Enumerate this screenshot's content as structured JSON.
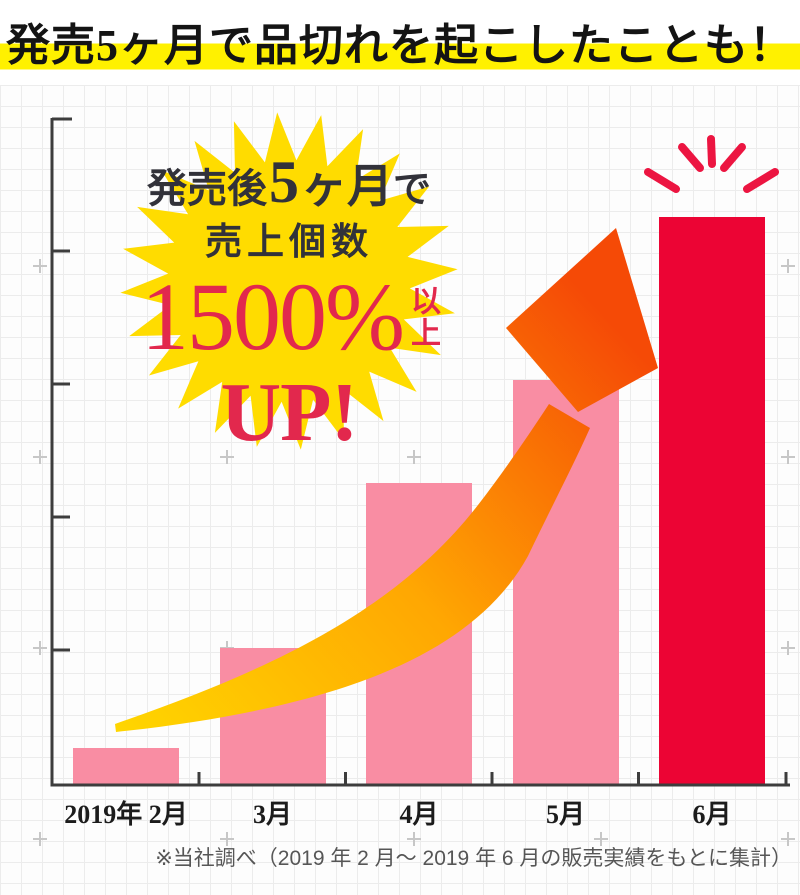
{
  "headline": {
    "text": "発売5ヶ月で品切れを起こしたことも！"
  },
  "badge": {
    "line1_prefix": "発売後",
    "line1_num": "5",
    "line1_unit": "ヶ月",
    "line1_suffix": "で",
    "line2": "売上個数",
    "value": "1500%",
    "value_suffix": "以上",
    "up": "UP!"
  },
  "footnote": {
    "text": "※当社調べ（2019 年 2 月～ 2019 年 6 月の販売実績をもとに集計）"
  },
  "colors": {
    "highlight_yellow": "#fff100",
    "star_yellow": "#ffdc00",
    "bar_pink": "#f98da3",
    "bar_red": "#ec0434",
    "text_red": "#e2284d",
    "text_dark": "#32323a",
    "arrow_start": "#ffd600",
    "arrow_mid": "#ffa702",
    "arrow_end": "#f54a06",
    "rays_red": "#ec1541",
    "axis_dark": "#3d3d3d",
    "plus_gray": "#c7c7c7"
  },
  "chart_data": {
    "type": "bar",
    "categories": [
      "2019年 2月",
      "3月",
      "4月",
      "5月",
      "6月"
    ],
    "values": [
      100,
      370,
      815,
      1095,
      1535
    ],
    "values_note": "relative sales-unit index estimated from bar heights, Feb 2019 = 100 (+1500% by month 5)",
    "series_name": "売上個数",
    "bar_colors": [
      "#f98da3",
      "#f98da3",
      "#f98da3",
      "#f98da3",
      "#ec0434"
    ],
    "highlight_index": 4,
    "ylim": [
      0,
      1600
    ],
    "y_tick_labels": [],
    "x_tick_labels": [
      "2019年 2月",
      "3月",
      "4月",
      "5月",
      "6月"
    ],
    "grid": "graph-paper background, unlabeled y-axis ticks",
    "legend": "none",
    "annotation": "発売後5ヶ月で売上個数1500%以上UP!",
    "footnote": "※当社調べ（2019 年 2 月～ 2019 年 6 月の販売実績をもとに集計）"
  }
}
